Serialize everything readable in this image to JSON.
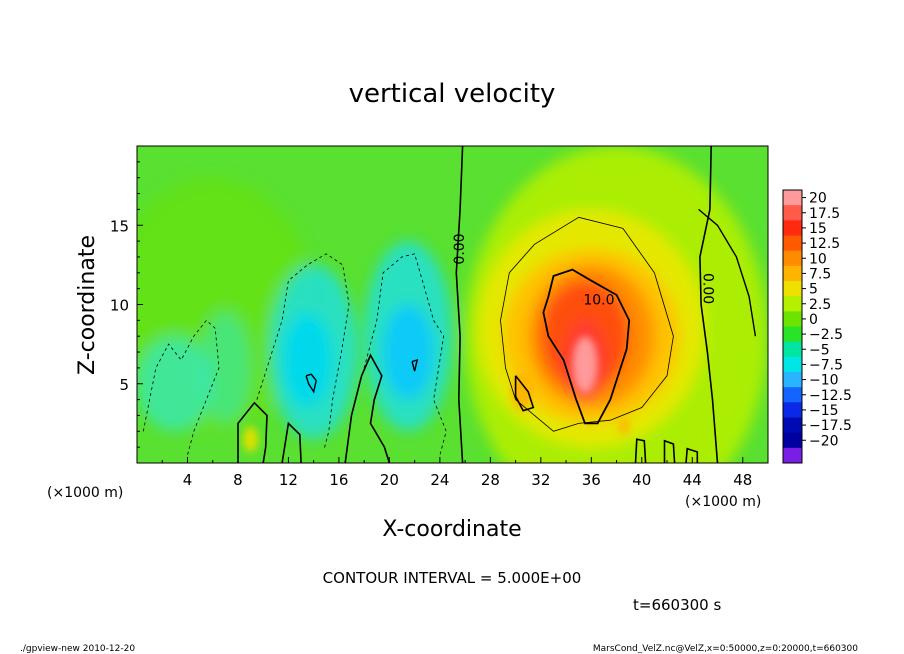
{
  "chart_data": {
    "type": "heatmap",
    "title": "vertical velocity",
    "xlabel": "X-coordinate",
    "ylabel": "Z-coordinate",
    "x_unit_label": "(×1000 m)",
    "y_unit_label": "(×1000 m)",
    "xlim": [
      0,
      50
    ],
    "ylim": [
      0,
      20
    ],
    "x_ticks": [
      "4",
      "8",
      "12",
      "16",
      "20",
      "24",
      "28",
      "32",
      "36",
      "40",
      "44",
      "48"
    ],
    "y_ticks": [
      "5",
      "10",
      "15"
    ],
    "contour_interval_text": "CONTOUR INTERVAL = 5.000E+00",
    "time_text": "t=660300 s",
    "contour_labels": [
      {
        "text": "0.00",
        "x": 25.9,
        "z": 13.5,
        "rotate": -90
      },
      {
        "text": "10.0",
        "x": 36.6,
        "z": 10.0,
        "rotate": 0
      },
      {
        "text": "0.00",
        "x": 44.9,
        "z": 11.0,
        "rotate": 90
      }
    ],
    "colorbar": {
      "levels": [
        "20",
        "17.5",
        "15",
        "12.5",
        "10",
        "7.5",
        "5",
        "2.5",
        "0",
        "−2.5",
        "−5",
        "−7.5",
        "−10",
        "−12.5",
        "−15",
        "−17.5",
        "−20"
      ],
      "colors": [
        "#ff9a9a",
        "#ff5a4a",
        "#ff2a10",
        "#ff5a00",
        "#ff8c00",
        "#ffb400",
        "#f0e000",
        "#b4f000",
        "#6ce400",
        "#28e428",
        "#00e6a0",
        "#00e6e6",
        "#28b4ff",
        "#1464ff",
        "#0a28e6",
        "#000ab4",
        "#0000a0",
        "#7a1ee6"
      ]
    }
  },
  "footer": {
    "left": "./gpview-new  2010-12-20",
    "right": "MarsCond_VelZ.nc@VelZ,x=0:50000,z=0:20000,t=660300"
  }
}
